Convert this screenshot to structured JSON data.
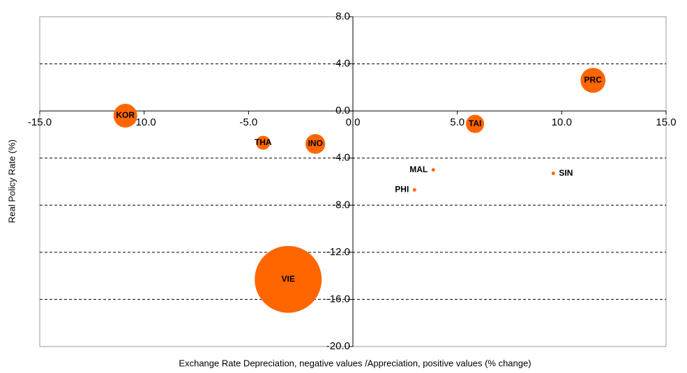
{
  "chart_data": {
    "type": "bubble",
    "x_label": "Exchange Rate Depreciation, negative values /Appreciation, positive values (% change)",
    "y_label": "Real Policy Rate (%)",
    "color": "#ff6600",
    "labels": [
      "KOR",
      "THA",
      "INO",
      "VIE",
      "TAI",
      "PRC",
      "MAL",
      "PHI",
      "SIN"
    ],
    "x": [
      -10.9,
      -4.3,
      -1.8,
      -3.1,
      5.85,
      11.5,
      3.85,
      2.95,
      9.6
    ],
    "y": [
      -0.4,
      -2.7,
      -2.8,
      -14.3,
      -1.1,
      2.6,
      -5.0,
      -6.7,
      -5.3
    ],
    "sizes": [
      2.9,
      1.0,
      2.0,
      23,
      1.7,
      3.2,
      0.05,
      0.05,
      0.05
    ],
    "xlim": [
      -15,
      15
    ],
    "ylim": [
      -20,
      8
    ],
    "xticks": [
      {
        "value": -15,
        "label": "-15.0"
      },
      {
        "value": -10,
        "label": "-10.0"
      },
      {
        "value": -5,
        "label": "-5.0"
      },
      {
        "value": 0,
        "label": "0.0"
      },
      {
        "value": 5,
        "label": "5.0"
      },
      {
        "value": 10,
        "label": "10.0"
      },
      {
        "value": 15,
        "label": "15.0"
      }
    ],
    "yticks": [
      {
        "value": 8,
        "label": "8.0"
      },
      {
        "value": 4,
        "label": "4.0"
      },
      {
        "value": 0,
        "label": "0.0"
      },
      {
        "value": -4,
        "label": "-4.0"
      },
      {
        "value": -8,
        "label": "-8.0"
      },
      {
        "value": -12,
        "label": "-12.0"
      },
      {
        "value": -16,
        "label": "-16.0"
      },
      {
        "value": -20,
        "label": "-20.0"
      }
    ],
    "grid": true
  }
}
